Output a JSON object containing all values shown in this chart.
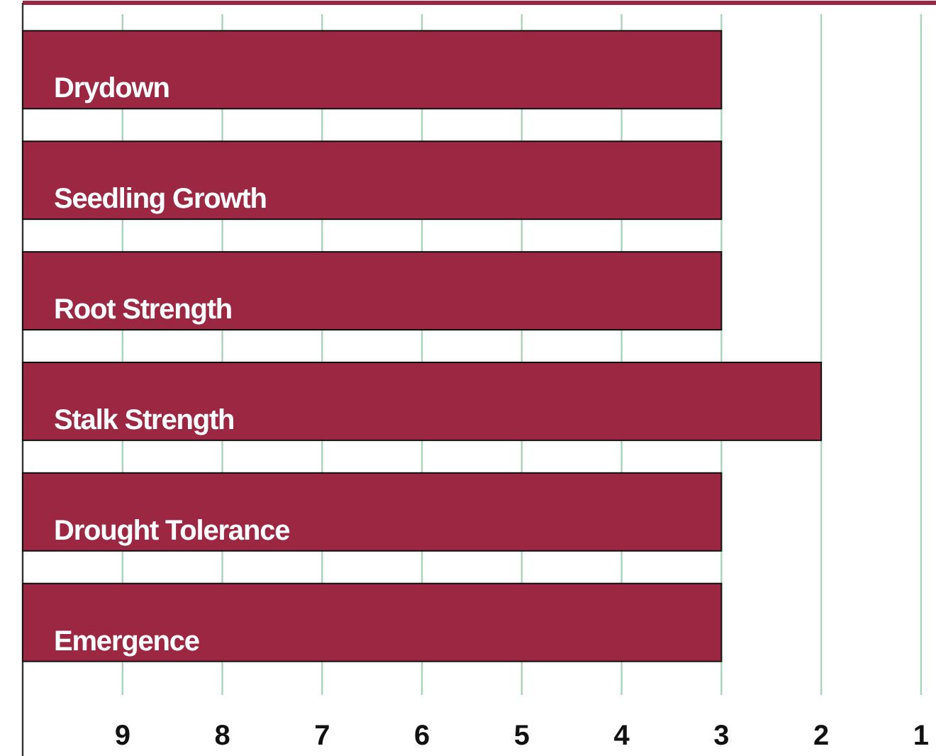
{
  "chart_data": {
    "type": "bar",
    "orientation": "horizontal",
    "categories": [
      "Drydown",
      "Seedling Growth",
      "Root Strength",
      "Stalk Strength",
      "Drought Tolerance",
      "Emergence"
    ],
    "values": [
      -7,
      -7,
      -7,
      -8,
      -7,
      -7
    ],
    "base": [
      10,
      10,
      10,
      10,
      10,
      10
    ],
    "color": "#9b2743",
    "xlim": [
      10,
      0.85
    ],
    "xticks": [
      9,
      8,
      7,
      6,
      5,
      4,
      3,
      2,
      1
    ],
    "grid": "x"
  }
}
